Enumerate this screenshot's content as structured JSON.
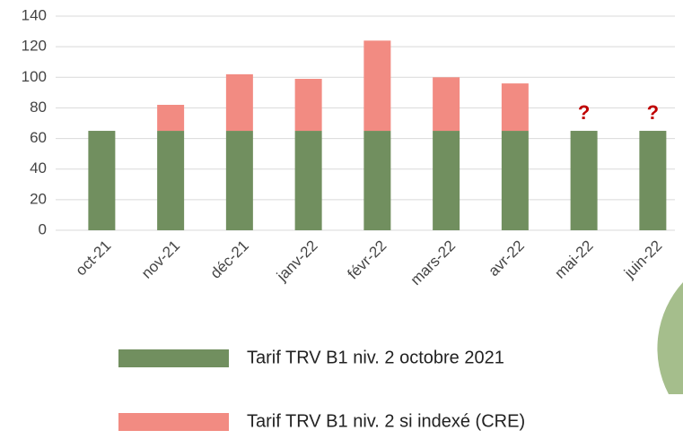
{
  "chart_data": {
    "type": "stacked_bar",
    "categories": [
      "oct-21",
      "nov-21",
      "déc-21",
      "janv-22",
      "févr-22",
      "mars-22",
      "avr-22",
      "mai-22",
      "juin-22"
    ],
    "series": [
      {
        "name": "Tarif TRV B1 niv. 2 octobre 2021",
        "color": "#718f5f",
        "values": [
          65,
          65,
          65,
          65,
          65,
          65,
          65,
          65,
          65
        ]
      },
      {
        "name": "Tarif TRV B1 niv. 2 si indexé (CRE)",
        "color": "#f28b82",
        "values": [
          0,
          17,
          37,
          34,
          59,
          35,
          31,
          null,
          null
        ]
      }
    ],
    "annotations": [
      {
        "text": "?",
        "category": "mai-22",
        "color": "#c00000"
      },
      {
        "text": "?",
        "category": "juin-22",
        "color": "#c00000"
      }
    ],
    "ylim": [
      0,
      140
    ],
    "yticks": [
      0,
      20,
      40,
      60,
      80,
      100,
      120,
      140
    ],
    "grid": true
  }
}
